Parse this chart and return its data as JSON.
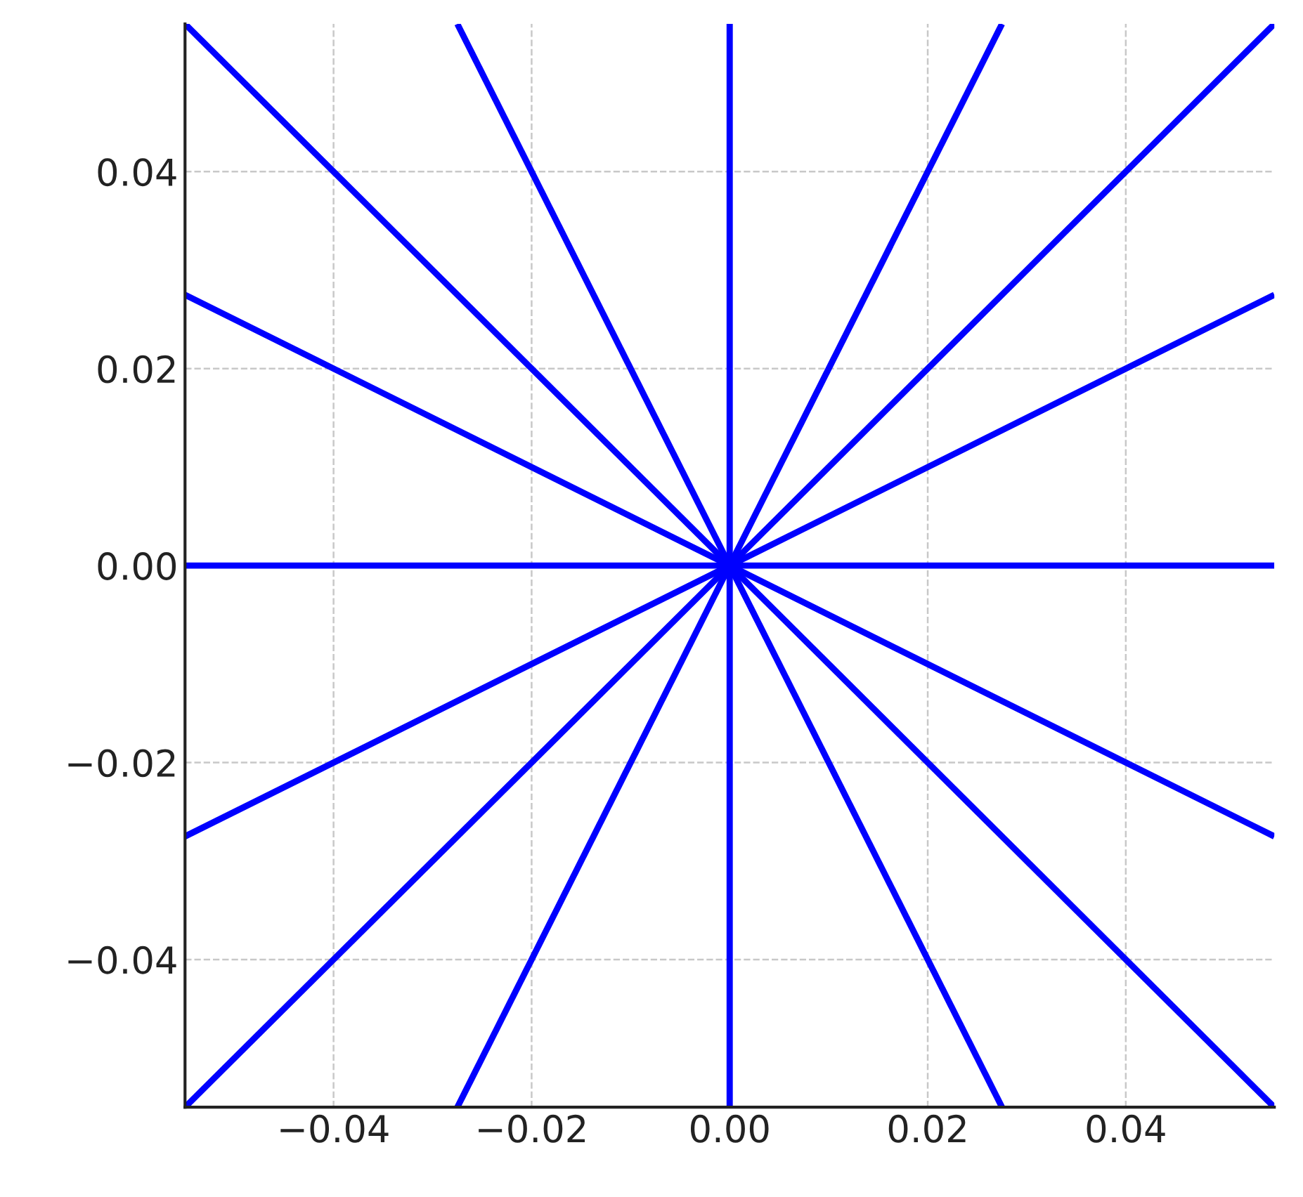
{
  "chart_data": {
    "type": "line",
    "xlim": [
      -0.055,
      0.055
    ],
    "ylim": [
      -0.055,
      0.055
    ],
    "xticks": [
      {
        "value": -0.04,
        "label": "−0.04"
      },
      {
        "value": -0.02,
        "label": "−0.02"
      },
      {
        "value": 0.0,
        "label": "0.00"
      },
      {
        "value": 0.02,
        "label": "0.02"
      },
      {
        "value": 0.04,
        "label": "0.04"
      }
    ],
    "yticks": [
      {
        "value": -0.04,
        "label": "−0.04"
      },
      {
        "value": -0.02,
        "label": "−0.02"
      },
      {
        "value": 0.0,
        "label": "0.00"
      },
      {
        "value": 0.02,
        "label": "0.02"
      },
      {
        "value": 0.04,
        "label": "0.04"
      }
    ],
    "grid": true,
    "marker": "none",
    "line_style": "solid",
    "series": [
      {
        "color": "#0000ff",
        "x": [
          -0.055,
          0.055
        ],
        "values": [
          0.0,
          0.0
        ]
      },
      {
        "color": "#0000ff",
        "x": [
          -0.055,
          0.055
        ],
        "values": [
          -0.0275,
          0.0275
        ]
      },
      {
        "color": "#0000ff",
        "x": [
          -0.055,
          0.055
        ],
        "values": [
          -0.055,
          0.055
        ]
      },
      {
        "color": "#0000ff",
        "x": [
          -0.0275,
          0.0275
        ],
        "values": [
          -0.055,
          0.055
        ]
      },
      {
        "color": "#0000ff",
        "x": [
          0.0,
          0.0
        ],
        "values": [
          -0.055,
          0.055
        ]
      },
      {
        "color": "#0000ff",
        "x": [
          -0.0275,
          0.0275
        ],
        "values": [
          0.055,
          -0.055
        ]
      },
      {
        "color": "#0000ff",
        "x": [
          -0.055,
          0.055
        ],
        "values": [
          0.055,
          -0.055
        ]
      },
      {
        "color": "#0000ff",
        "x": [
          -0.055,
          0.055
        ],
        "values": [
          0.0275,
          -0.0275
        ]
      }
    ]
  }
}
